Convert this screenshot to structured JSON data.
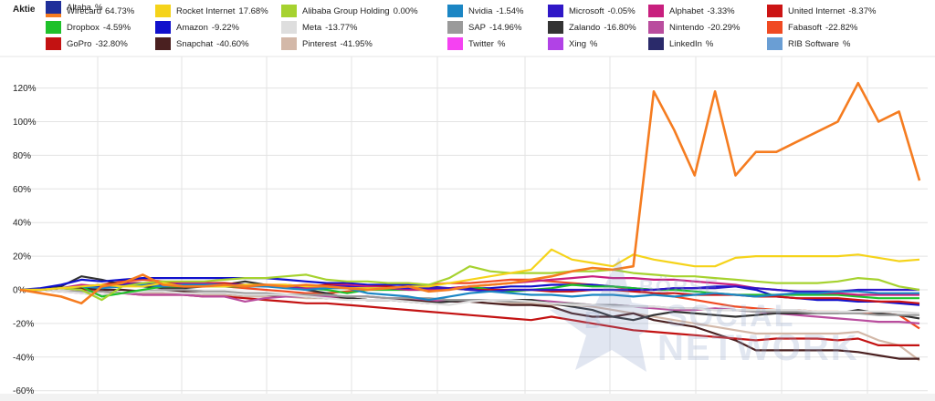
{
  "legend": {
    "header": "Aktie",
    "items": [
      {
        "name": "Wirecard",
        "value": "64.73%",
        "color": "#f57c20"
      },
      {
        "name": "Rocket Internet",
        "value": "17.68%",
        "color": "#f5d31a"
      },
      {
        "name": "Alibaba Group Holding",
        "value": "0.00%",
        "color": "#a6d22f"
      },
      {
        "name": "Nvidia",
        "value": "-1.54%",
        "color": "#1b86c4"
      },
      {
        "name": "Microsoft",
        "value": "-0.05%",
        "color": "#2f17c7"
      },
      {
        "name": "Alphabet",
        "value": "-3.33%",
        "color": "#c81f7e"
      },
      {
        "name": "United Internet",
        "value": "-8.37%",
        "color": "#cc1414"
      },
      {
        "name": "Dropbox",
        "value": "-4.59%",
        "color": "#1ec12a"
      },
      {
        "name": "Amazon",
        "value": "-9.22%",
        "color": "#1010cc"
      },
      {
        "name": "Meta",
        "value": "-13.77%",
        "color": "#dedede"
      },
      {
        "name": "SAP",
        "value": "-14.96%",
        "color": "#9a9a9a"
      },
      {
        "name": "Zalando",
        "value": "-16.80%",
        "color": "#333333"
      },
      {
        "name": "Nintendo",
        "value": "-20.29%",
        "color": "#b94d9e"
      },
      {
        "name": "Fabasoft",
        "value": "-22.82%",
        "color": "#f04a22"
      },
      {
        "name": "GoPro",
        "value": "-32.80%",
        "color": "#c31212"
      },
      {
        "name": "Snapchat",
        "value": "-40.60%",
        "color": "#4a2020"
      },
      {
        "name": "Pinterest",
        "value": "-41.95%",
        "color": "#d3b8a8"
      },
      {
        "name": "Twitter",
        "value": "%",
        "color": "#f542f2"
      },
      {
        "name": "Xing",
        "value": "%",
        "color": "#b142e6"
      },
      {
        "name": "LinkedIn",
        "value": "%",
        "color": "#2a2a6a"
      },
      {
        "name": "RIB Software",
        "value": "%",
        "color": "#6a9ed4"
      },
      {
        "name": "Altaba",
        "value": "%",
        "color": "#1f2f9a"
      }
    ]
  },
  "watermark": {
    "line1": "BÖRSE",
    "line2": "SOCIAL",
    "line3": "NETWORK",
    "prefix": "B"
  },
  "chart_data": {
    "type": "line",
    "y_tick_labels": [
      "120%",
      "100%",
      "80%",
      "60%",
      "40%",
      "20%",
      "0%",
      "-20%",
      "-40%",
      "-60%"
    ],
    "ylim": [
      -60,
      120
    ],
    "grid": true,
    "x": [
      0,
      1,
      2,
      3,
      4,
      5,
      6,
      7,
      8,
      9,
      10,
      11,
      12,
      13,
      14,
      15,
      16,
      17,
      18,
      19,
      20,
      21,
      22,
      23,
      24,
      25,
      26,
      27,
      28,
      29,
      30,
      31,
      32,
      33,
      34,
      35,
      36,
      37,
      38,
      39,
      40,
      41,
      42,
      43,
      44
    ],
    "series": [
      {
        "name": "Wirecard",
        "color": "#f57c20",
        "values": [
          0,
          -2,
          -4,
          -8,
          2,
          4,
          9,
          3,
          2,
          2,
          3,
          2,
          3,
          2,
          3,
          2,
          1,
          0,
          1,
          2,
          -1,
          0,
          2,
          3,
          4,
          6,
          8,
          11,
          13,
          12,
          14,
          118,
          95,
          68,
          118,
          68,
          82,
          82,
          88,
          94,
          100,
          123,
          100,
          106,
          65
        ]
      },
      {
        "name": "Rocket Internet",
        "color": "#f5d31a",
        "values": [
          0,
          0,
          1,
          2,
          3,
          2,
          2,
          4,
          2,
          2,
          2,
          3,
          3,
          3,
          2,
          2,
          1,
          1,
          1,
          2,
          2,
          4,
          6,
          8,
          10,
          12,
          24,
          18,
          16,
          14,
          21,
          18,
          16,
          14,
          14,
          19,
          20,
          20,
          20,
          20,
          20,
          21,
          19,
          17,
          18
        ]
      },
      {
        "name": "Alibaba Group Holding",
        "color": "#a6d22f",
        "values": [
          0,
          0,
          1,
          0,
          -6,
          2,
          4,
          5,
          5,
          5,
          6,
          7,
          7,
          8,
          9,
          6,
          5,
          5,
          4,
          4,
          3,
          7,
          14,
          11,
          10,
          10,
          10,
          11,
          11,
          12,
          10,
          9,
          8,
          8,
          7,
          6,
          5,
          4,
          4,
          4,
          5,
          7,
          6,
          2,
          0
        ]
      },
      {
        "name": "Nvidia",
        "color": "#1b86c4",
        "values": [
          0,
          0,
          1,
          2,
          1,
          2,
          3,
          2,
          3,
          3,
          3,
          2,
          2,
          1,
          0,
          1,
          1,
          -2,
          -3,
          -4,
          -6,
          -4,
          -2,
          -1,
          -2,
          -3,
          -3,
          -4,
          -3,
          -3,
          -4,
          -3,
          -4,
          -3,
          -2,
          -3,
          -4,
          -3,
          -2,
          -2,
          -1,
          -1,
          -2,
          -2,
          -2
        ]
      },
      {
        "name": "Microsoft",
        "color": "#2f17c7",
        "values": [
          0,
          0,
          1,
          2,
          2,
          3,
          4,
          3,
          3,
          3,
          3,
          3,
          2,
          2,
          2,
          2,
          2,
          1,
          1,
          1,
          1,
          1,
          0,
          -1,
          0,
          0,
          0,
          0,
          0,
          0,
          0,
          0,
          1,
          1,
          1,
          2,
          1,
          0,
          -1,
          -1,
          -1,
          0,
          0,
          0,
          0
        ]
      },
      {
        "name": "Alphabet",
        "color": "#c81f7e",
        "values": [
          0,
          0,
          1,
          3,
          2,
          4,
          3,
          3,
          4,
          4,
          3,
          3,
          2,
          2,
          1,
          2,
          3,
          2,
          1,
          0,
          0,
          1,
          2,
          3,
          4,
          5,
          6,
          7,
          8,
          7,
          7,
          6,
          6,
          5,
          4,
          3,
          1,
          0,
          -1,
          -2,
          -2,
          -3,
          -3,
          -3,
          -3
        ]
      },
      {
        "name": "United Internet",
        "color": "#cc1414",
        "values": [
          0,
          0,
          1,
          2,
          3,
          4,
          4,
          4,
          4,
          4,
          4,
          3,
          3,
          3,
          2,
          3,
          3,
          2,
          2,
          1,
          1,
          1,
          0,
          0,
          0,
          0,
          -1,
          -1,
          0,
          0,
          -1,
          -2,
          -2,
          -3,
          -3,
          -3,
          -4,
          -4,
          -5,
          -5,
          -5,
          -6,
          -7,
          -7,
          -8
        ]
      },
      {
        "name": "Dropbox",
        "color": "#1ec12a",
        "values": [
          0,
          0,
          1,
          2,
          -4,
          -2,
          0,
          2,
          2,
          2,
          2,
          2,
          3,
          2,
          1,
          0,
          -2,
          0,
          0,
          0,
          0,
          1,
          2,
          0,
          -1,
          0,
          1,
          3,
          2,
          2,
          1,
          0,
          0,
          -1,
          -2,
          -3,
          -3,
          -3,
          -3,
          -3,
          -3,
          -4,
          -5,
          -5,
          -5
        ]
      },
      {
        "name": "Amazon",
        "color": "#1010cc",
        "values": [
          0,
          1,
          3,
          6,
          5,
          6,
          7,
          7,
          7,
          7,
          7,
          7,
          7,
          6,
          5,
          4,
          4,
          3,
          3,
          3,
          2,
          1,
          1,
          1,
          2,
          2,
          3,
          3,
          3,
          2,
          1,
          0,
          1,
          1,
          2,
          2,
          0,
          -4,
          -5,
          -6,
          -6,
          -7,
          -7,
          -8,
          -9
        ]
      },
      {
        "name": "Meta",
        "color": "#dedede",
        "values": [
          0,
          0,
          -1,
          -2,
          -3,
          -2,
          -1,
          -1,
          -2,
          -2,
          -2,
          -3,
          -3,
          -3,
          -4,
          -5,
          -6,
          -6,
          -6,
          -7,
          -8,
          -9,
          -7,
          -6,
          -6,
          -7,
          -8,
          -9,
          -9,
          -10,
          -10,
          -10,
          -11,
          -11,
          -12,
          -12,
          -12,
          -12,
          -12,
          -13,
          -13,
          -13,
          -13,
          -13,
          -14
        ]
      },
      {
        "name": "SAP",
        "color": "#9a9a9a",
        "values": [
          0,
          0,
          -1,
          -1,
          -1,
          -2,
          -1,
          0,
          0,
          -1,
          -1,
          -2,
          -2,
          -3,
          -3,
          -3,
          -4,
          -4,
          -5,
          -5,
          -5,
          -6,
          -6,
          -6,
          -7,
          -7,
          -8,
          -8,
          -9,
          -9,
          -10,
          -10,
          -11,
          -11,
          -12,
          -12,
          -13,
          -13,
          -13,
          -14,
          -14,
          -14,
          -15,
          -15,
          -15
        ]
      },
      {
        "name": "Zalando",
        "color": "#333333",
        "values": [
          0,
          0,
          2,
          8,
          6,
          3,
          2,
          1,
          1,
          2,
          3,
          5,
          3,
          2,
          0,
          -2,
          -5,
          -6,
          -6,
          -7,
          -8,
          -7,
          -6,
          -6,
          -6,
          -6,
          -8,
          -10,
          -12,
          -16,
          -18,
          -15,
          -13,
          -14,
          -15,
          -16,
          -15,
          -14,
          -14,
          -14,
          -14,
          -12,
          -14,
          -15,
          -17
        ]
      },
      {
        "name": "Nintendo",
        "color": "#b94d9e",
        "values": [
          0,
          0,
          -1,
          -2,
          -3,
          -2,
          -3,
          -3,
          -3,
          -4,
          -4,
          -7,
          -5,
          -4,
          -4,
          -4,
          -4,
          -4,
          -5,
          -5,
          -6,
          -7,
          -6,
          -6,
          -6,
          -6,
          -7,
          -8,
          -9,
          -9,
          -10,
          -11,
          -12,
          -12,
          -11,
          -12,
          -13,
          -14,
          -15,
          -16,
          -17,
          -18,
          -19,
          -19,
          -20
        ]
      },
      {
        "name": "Fabasoft",
        "color": "#f04a22",
        "values": [
          0,
          0,
          1,
          2,
          3,
          5,
          6,
          5,
          4,
          3,
          2,
          1,
          0,
          -1,
          -2,
          -2,
          -1,
          0,
          1,
          2,
          3,
          4,
          4,
          5,
          6,
          6,
          5,
          4,
          3,
          2,
          0,
          -2,
          -4,
          -6,
          -8,
          -10,
          -11,
          -12,
          -12,
          -13,
          -13,
          -14,
          -14,
          -15,
          -23
        ]
      },
      {
        "name": "GoPro",
        "color": "#c31212",
        "values": [
          0,
          0,
          1,
          0,
          -1,
          -2,
          -3,
          -3,
          -3,
          -4,
          -4,
          -5,
          -6,
          -7,
          -8,
          -8,
          -9,
          -10,
          -11,
          -12,
          -13,
          -14,
          -15,
          -16,
          -17,
          -18,
          -16,
          -18,
          -20,
          -22,
          -24,
          -25,
          -26,
          -27,
          -28,
          -29,
          -30,
          -29,
          -29,
          -29,
          -30,
          -29,
          -33,
          -33,
          -33
        ]
      },
      {
        "name": "Snapchat",
        "color": "#4a2020",
        "values": [
          0,
          0,
          1,
          1,
          0,
          0,
          -1,
          -1,
          -1,
          -2,
          -2,
          -3,
          -3,
          -4,
          -4,
          -5,
          -5,
          -6,
          -6,
          -6,
          -7,
          -7,
          -7,
          -8,
          -9,
          -9,
          -10,
          -14,
          -16,
          -16,
          -14,
          -18,
          -20,
          -22,
          -26,
          -30,
          -36,
          -36,
          -36,
          -36,
          -36,
          -37,
          -39,
          -41,
          -41
        ]
      },
      {
        "name": "Pinterest",
        "color": "#d3b8a8",
        "values": [
          0,
          0,
          -1,
          -1,
          -1,
          -2,
          -2,
          -2,
          -3,
          -3,
          -3,
          -4,
          -4,
          -4,
          -5,
          -5,
          -5,
          -6,
          -6,
          -6,
          -7,
          -7,
          -7,
          -8,
          -8,
          -8,
          -9,
          -9,
          -10,
          -12,
          -14,
          -16,
          -18,
          -20,
          -22,
          -24,
          -26,
          -26,
          -26,
          -26,
          -26,
          -25,
          -30,
          -33,
          -42
        ]
      }
    ]
  }
}
